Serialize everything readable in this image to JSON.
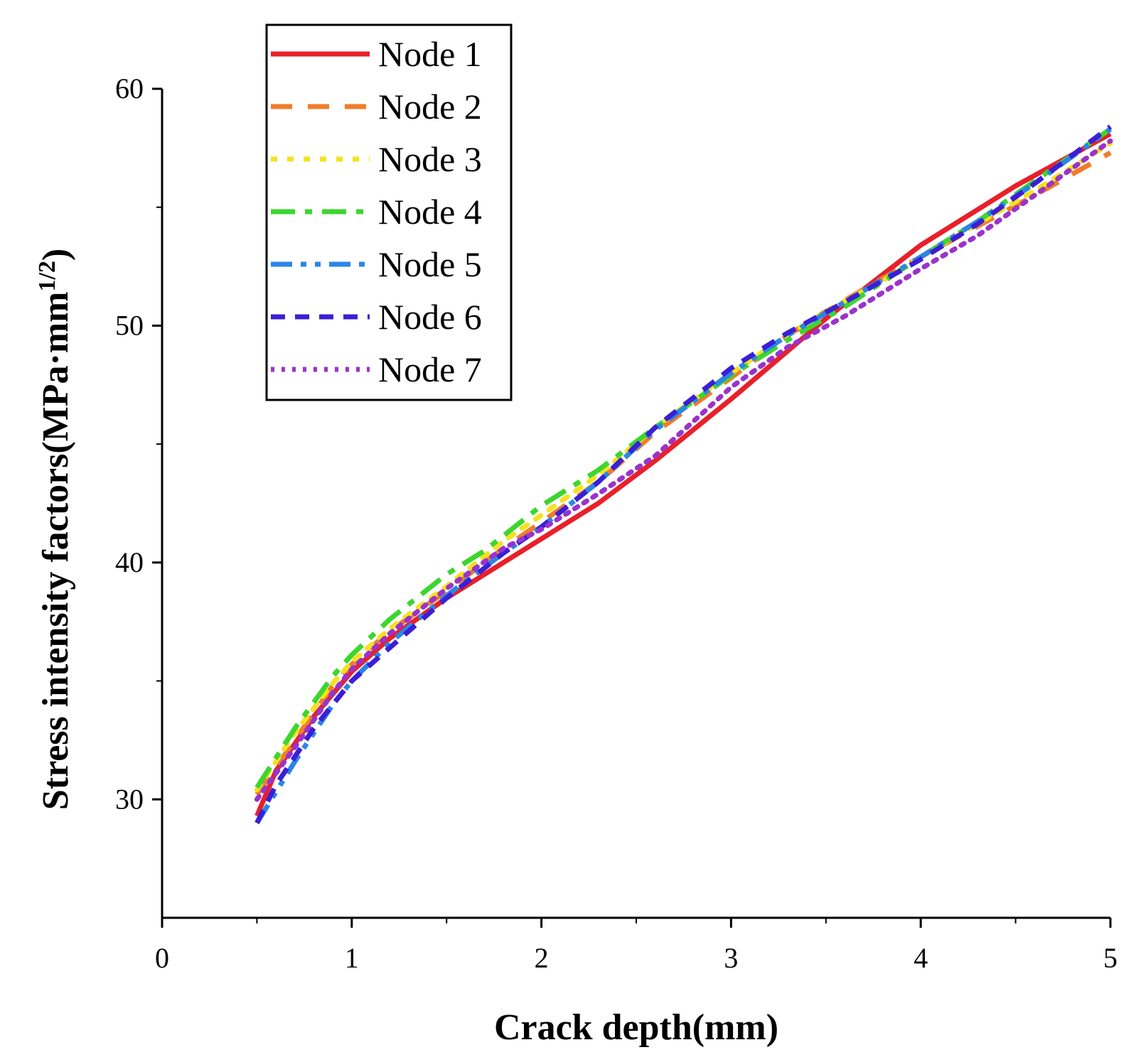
{
  "chart_data": {
    "type": "line",
    "xlabel": "Crack depth(mm)",
    "ylabel": {
      "main": "Stress intensity factors(MPa·mm",
      "superscript": "1/2",
      "close": ")"
    },
    "xlim": [
      0,
      5
    ],
    "ylim": [
      25,
      60
    ],
    "x_ticks": [
      "0",
      "1",
      "2",
      "3",
      "4",
      "5"
    ],
    "y_ticks": [
      "30",
      "40",
      "50",
      "60"
    ],
    "grid": false,
    "legend_position": "top-left",
    "series": [
      {
        "name": "Node 1",
        "color": "#e8202a",
        "style": "solid",
        "x": [
          0.5,
          0.6,
          0.8,
          1.0,
          1.2,
          1.5,
          2.0,
          2.3,
          2.6,
          3.0,
          3.5,
          4.0,
          4.5,
          5.0
        ],
        "y": [
          29.3,
          31.2,
          33.5,
          35.4,
          36.8,
          38.5,
          41.0,
          42.5,
          44.3,
          46.9,
          50.3,
          53.4,
          55.9,
          58.1
        ]
      },
      {
        "name": "Node 2",
        "color": "#f07d2a",
        "style": "dash",
        "x": [
          0.5,
          0.7,
          0.9,
          1.0,
          1.2,
          1.5,
          1.8,
          2.0,
          2.3,
          2.6,
          3.0,
          3.3,
          3.5,
          3.8,
          4.0,
          4.3,
          4.6,
          5.0
        ],
        "y": [
          30.2,
          32.5,
          34.8,
          35.7,
          37.1,
          38.8,
          40.6,
          41.7,
          43.4,
          45.5,
          47.8,
          49.6,
          50.6,
          52.0,
          52.9,
          54.2,
          55.5,
          57.3
        ]
      },
      {
        "name": "Node 3",
        "color": "#f5e21e",
        "style": "dot",
        "x": [
          0.5,
          0.7,
          0.9,
          1.0,
          1.2,
          1.5,
          1.8,
          2.0,
          2.3,
          2.6,
          3.0,
          3.3,
          3.5,
          3.8,
          4.0,
          4.3,
          4.6,
          5.0
        ],
        "y": [
          30.4,
          32.8,
          34.9,
          35.8,
          37.2,
          39.0,
          40.9,
          42.0,
          43.7,
          45.7,
          48.0,
          49.6,
          50.6,
          51.9,
          52.9,
          54.3,
          55.7,
          57.7
        ]
      },
      {
        "name": "Node 4",
        "color": "#3cd62f",
        "style": "dashdot",
        "x": [
          0.5,
          0.7,
          0.9,
          1.0,
          1.2,
          1.5,
          1.7,
          2.0,
          2.3,
          2.6,
          3.0,
          3.3,
          3.6,
          4.0,
          4.3,
          4.6,
          5.0
        ],
        "y": [
          30.5,
          33.0,
          35.2,
          36.1,
          37.6,
          39.5,
          40.5,
          42.4,
          43.9,
          45.7,
          47.9,
          49.4,
          50.8,
          52.9,
          54.4,
          56.1,
          58.3
        ]
      },
      {
        "name": "Node 5",
        "color": "#2b86e5",
        "style": "dashdotdot",
        "x": [
          0.5,
          0.7,
          0.9,
          1.0,
          1.2,
          1.5,
          1.8,
          2.0,
          2.3,
          2.6,
          3.0,
          3.3,
          3.6,
          4.0,
          4.3,
          4.6,
          5.0
        ],
        "y": [
          29.0,
          31.6,
          34.0,
          35.0,
          36.6,
          38.6,
          40.4,
          41.5,
          43.4,
          45.6,
          48.0,
          49.6,
          51.0,
          52.9,
          54.4,
          56.0,
          58.3
        ]
      },
      {
        "name": "Node 6",
        "color": "#3b1fd6",
        "style": "shortdash",
        "x": [
          0.5,
          0.6,
          0.8,
          1.0,
          1.2,
          1.5,
          1.8,
          2.0,
          2.3,
          2.6,
          3.0,
          3.3,
          3.6,
          4.0,
          4.3,
          4.6,
          5.0
        ],
        "y": [
          29.0,
          30.6,
          33.0,
          35.0,
          36.4,
          38.5,
          40.4,
          41.5,
          43.4,
          45.7,
          48.2,
          49.7,
          51.0,
          52.8,
          54.3,
          56.0,
          58.4
        ]
      },
      {
        "name": "Node 7",
        "color": "#9933cc",
        "style": "dotted",
        "x": [
          0.5,
          0.7,
          0.9,
          1.0,
          1.2,
          1.5,
          1.8,
          2.0,
          2.3,
          2.6,
          3.0,
          3.3,
          3.6,
          4.0,
          4.3,
          4.6,
          5.0
        ],
        "y": [
          30.0,
          32.2,
          34.5,
          35.5,
          37.0,
          38.9,
          40.6,
          41.4,
          42.9,
          44.5,
          47.4,
          49.1,
          50.4,
          52.4,
          53.8,
          55.5,
          57.8
        ]
      }
    ]
  }
}
